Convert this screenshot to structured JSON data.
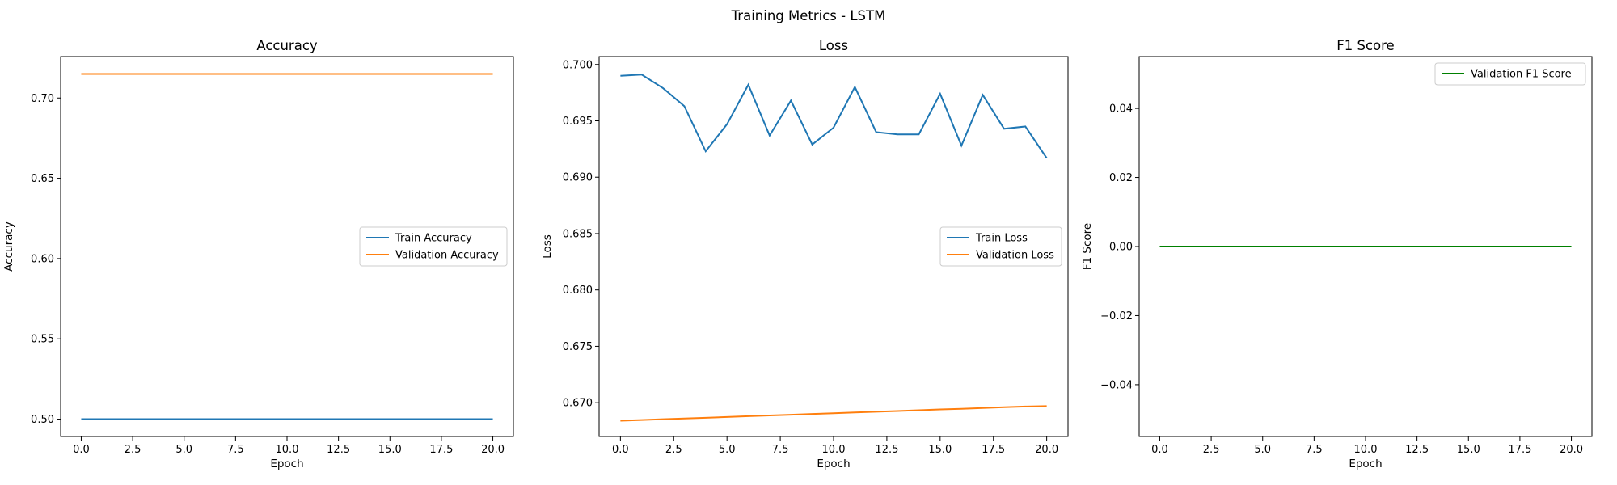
{
  "figure": {
    "suptitle": "Training Metrics - LSTM"
  },
  "chart_data": [
    {
      "type": "line",
      "title": "Accuracy",
      "xlabel": "Epoch",
      "ylabel": "Accuracy",
      "xlim": [
        -1,
        21
      ],
      "ylim": [
        0.4892,
        0.7258
      ],
      "xticks": [
        0.0,
        2.5,
        5.0,
        7.5,
        10.0,
        12.5,
        15.0,
        17.5,
        20.0
      ],
      "xtick_labels": [
        "0.0",
        "2.5",
        "5.0",
        "7.5",
        "10.0",
        "12.5",
        "15.0",
        "17.5",
        "20.0"
      ],
      "yticks": [
        0.5,
        0.55,
        0.6,
        0.65,
        0.7
      ],
      "ytick_labels": [
        "0.50",
        "0.55",
        "0.60",
        "0.65",
        "0.70"
      ],
      "legend_position": "center-right",
      "grid": false,
      "x": [
        0,
        1,
        2,
        3,
        4,
        5,
        6,
        7,
        8,
        9,
        10,
        11,
        12,
        13,
        14,
        15,
        16,
        17,
        18,
        19,
        20
      ],
      "series": [
        {
          "name": "Train Accuracy",
          "color": "#1f77b4",
          "values": [
            0.5,
            0.5,
            0.5,
            0.5,
            0.5,
            0.5,
            0.5,
            0.5,
            0.5,
            0.5,
            0.5,
            0.5,
            0.5,
            0.5,
            0.5,
            0.5,
            0.5,
            0.5,
            0.5,
            0.5,
            0.5
          ]
        },
        {
          "name": "Validation Accuracy",
          "color": "#ff7f0e",
          "values": [
            0.715,
            0.715,
            0.715,
            0.715,
            0.715,
            0.715,
            0.715,
            0.715,
            0.715,
            0.715,
            0.715,
            0.715,
            0.715,
            0.715,
            0.715,
            0.715,
            0.715,
            0.715,
            0.715,
            0.715,
            0.715
          ]
        }
      ]
    },
    {
      "type": "line",
      "title": "Loss",
      "xlabel": "Epoch",
      "ylabel": "Loss",
      "xlim": [
        -1,
        21
      ],
      "ylim": [
        0.667,
        0.7007
      ],
      "xticks": [
        0.0,
        2.5,
        5.0,
        7.5,
        10.0,
        12.5,
        15.0,
        17.5,
        20.0
      ],
      "xtick_labels": [
        "0.0",
        "2.5",
        "5.0",
        "7.5",
        "10.0",
        "12.5",
        "15.0",
        "17.5",
        "20.0"
      ],
      "yticks": [
        0.67,
        0.675,
        0.68,
        0.685,
        0.69,
        0.695,
        0.7
      ],
      "ytick_labels": [
        "0.670",
        "0.675",
        "0.680",
        "0.685",
        "0.690",
        "0.695",
        "0.700"
      ],
      "legend_position": "center-right",
      "grid": false,
      "x": [
        0,
        1,
        2,
        3,
        4,
        5,
        6,
        7,
        8,
        9,
        10,
        11,
        12,
        13,
        14,
        15,
        16,
        17,
        18,
        19,
        20
      ],
      "series": [
        {
          "name": "Train Loss",
          "color": "#1f77b4",
          "values": [
            0.699,
            0.6991,
            0.6979,
            0.6963,
            0.6923,
            0.6947,
            0.6982,
            0.6937,
            0.6968,
            0.6929,
            0.6944,
            0.698,
            0.694,
            0.6938,
            0.6938,
            0.6974,
            0.6928,
            0.6973,
            0.6943,
            0.6945,
            0.6917
          ]
        },
        {
          "name": "Validation Loss",
          "color": "#ff7f0e",
          "values": [
            0.6684,
            0.66846,
            0.66853,
            0.6686,
            0.66866,
            0.66873,
            0.6688,
            0.66886,
            0.66893,
            0.669,
            0.66906,
            0.66913,
            0.6692,
            0.66926,
            0.66933,
            0.6694,
            0.66946,
            0.66953,
            0.6696,
            0.66966,
            0.6697
          ]
        }
      ]
    },
    {
      "type": "line",
      "title": "F1 Score",
      "xlabel": "Epoch",
      "ylabel": "F1 Score",
      "xlim": [
        -1,
        21
      ],
      "ylim": [
        -0.055,
        0.055
      ],
      "xticks": [
        0.0,
        2.5,
        5.0,
        7.5,
        10.0,
        12.5,
        15.0,
        17.5,
        20.0
      ],
      "xtick_labels": [
        "0.0",
        "2.5",
        "5.0",
        "7.5",
        "10.0",
        "12.5",
        "15.0",
        "17.5",
        "20.0"
      ],
      "yticks": [
        -0.04,
        -0.02,
        0.0,
        0.02,
        0.04
      ],
      "ytick_labels": [
        "−0.04",
        "−0.02",
        "0.00",
        "0.02",
        "0.04"
      ],
      "legend_position": "top-right",
      "grid": false,
      "x": [
        0,
        1,
        2,
        3,
        4,
        5,
        6,
        7,
        8,
        9,
        10,
        11,
        12,
        13,
        14,
        15,
        16,
        17,
        18,
        19,
        20
      ],
      "series": [
        {
          "name": "Validation F1 Score",
          "color": "#008000",
          "values": [
            0,
            0,
            0,
            0,
            0,
            0,
            0,
            0,
            0,
            0,
            0,
            0,
            0,
            0,
            0,
            0,
            0,
            0,
            0,
            0,
            0
          ]
        }
      ]
    }
  ]
}
